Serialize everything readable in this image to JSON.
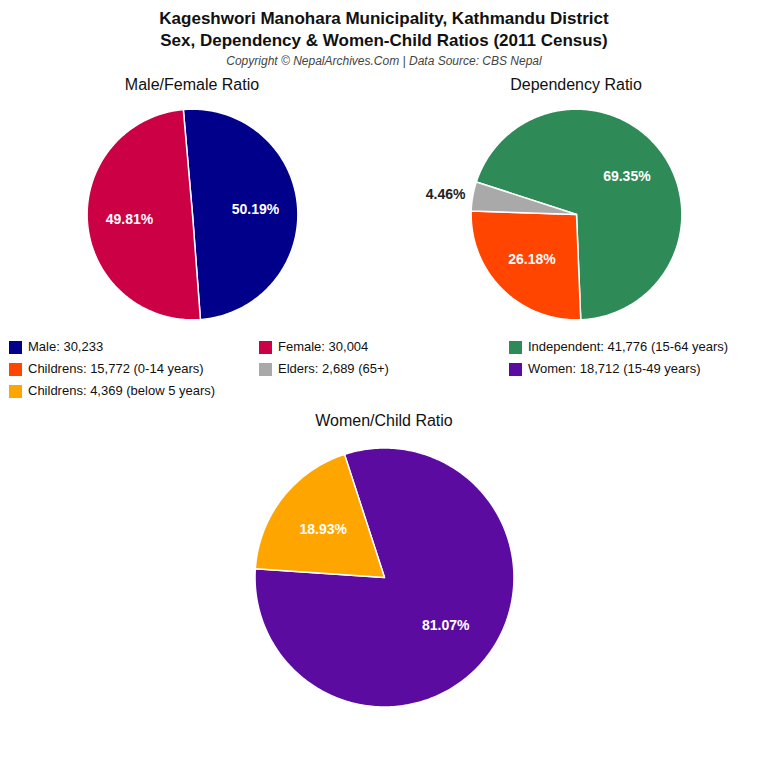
{
  "title": "Kageshwori Manohara Municipality, Kathmandu District\nSex, Dependency & Women-Child Ratios (2011 Census)",
  "subtitle": "Copyright © NepalArchives.Com | Data Source: CBS Nepal",
  "chart_data": [
    {
      "type": "pie",
      "title": "Male/Female Ratio",
      "categories": [
        "Male: 30,233",
        "Female: 30,004"
      ],
      "values": [
        50.19,
        49.81
      ],
      "value_labels": [
        "50.19%",
        "49.81%"
      ],
      "colors": [
        "#00008B",
        "#CC0044"
      ],
      "data_labels": true
    },
    {
      "type": "pie",
      "title": "Dependency Ratio",
      "categories": [
        "Independent: 41,776 (15-64 years)",
        "Childrens: 15,772 (0-14 years)",
        "Elders: 2,689 (65+)"
      ],
      "values": [
        69.35,
        26.18,
        4.46
      ],
      "value_labels": [
        "69.35%",
        "26.18%",
        "4.46%"
      ],
      "colors": [
        "#2E8B57",
        "#FF4500",
        "#A9A9A9"
      ],
      "data_labels": true
    },
    {
      "type": "pie",
      "title": "Women/Child Ratio",
      "categories": [
        "Women: 18,712 (15-49 years)",
        "Childrens: 4,369 (below 5 years)"
      ],
      "values": [
        81.07,
        18.93
      ],
      "value_labels": [
        "81.07%",
        "18.93%"
      ],
      "colors": [
        "#5B0BA0",
        "#FFA500"
      ],
      "data_labels": true
    }
  ]
}
